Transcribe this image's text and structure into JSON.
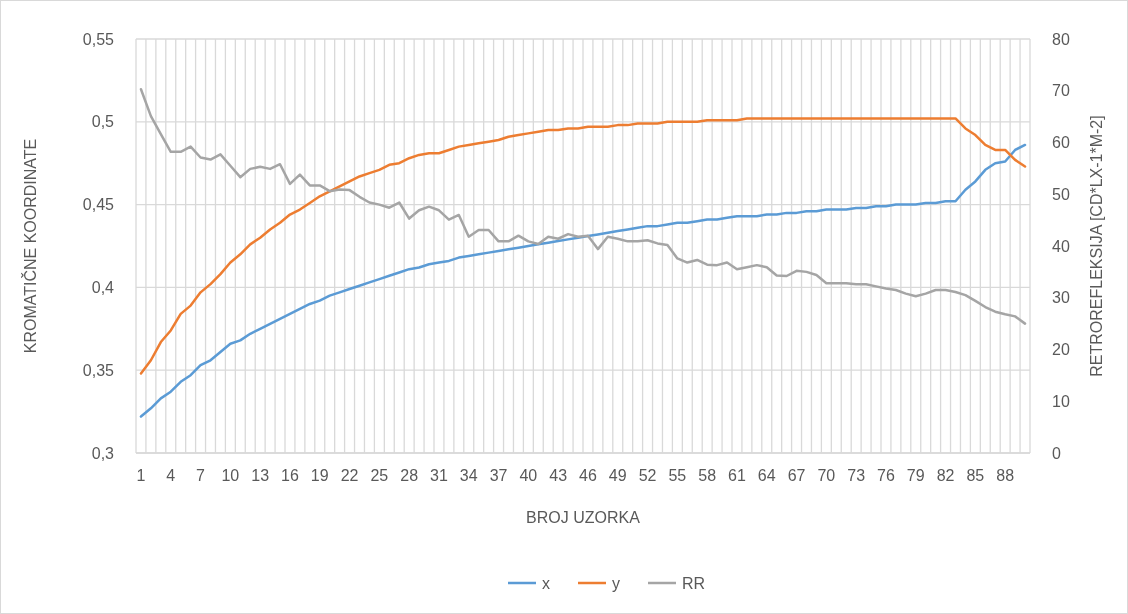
{
  "chart_data": {
    "type": "line",
    "xlabel": "BROJ UZORKA",
    "ylabel": "KROMATIČNE KOORDINATE",
    "y2label": "RETROREFLEKSIJA [CD*LX-1*M-2]",
    "categories": [
      "1",
      null,
      null,
      "4",
      null,
      null,
      "7",
      null,
      null,
      "10",
      null,
      null,
      "13",
      null,
      null,
      "16",
      null,
      null,
      "19",
      null,
      null,
      "22",
      null,
      null,
      "25",
      null,
      null,
      "28",
      null,
      null,
      "31",
      null,
      null,
      "34",
      null,
      null,
      "37",
      null,
      null,
      "40",
      null,
      null,
      "43",
      null,
      null,
      "46",
      null,
      null,
      "49",
      null,
      null,
      "52",
      null,
      null,
      "55",
      null,
      null,
      "58",
      null,
      null,
      "61",
      null,
      null,
      "64",
      null,
      null,
      "67",
      null,
      null,
      "70",
      null,
      null,
      "73",
      null,
      null,
      "76",
      null,
      null,
      "79",
      null,
      null,
      "82",
      null,
      null,
      "85",
      null,
      null,
      "88",
      null,
      null
    ],
    "ylim": [
      0.3,
      0.55
    ],
    "yticks": [
      {
        "value": 0.3,
        "label": "0,3"
      },
      {
        "value": 0.35,
        "label": "0,35"
      },
      {
        "value": 0.4,
        "label": "0,4"
      },
      {
        "value": 0.45,
        "label": "0,45"
      },
      {
        "value": 0.5,
        "label": "0,5"
      },
      {
        "value": 0.55,
        "label": "0,55"
      }
    ],
    "y2lim": [
      0,
      80
    ],
    "y2ticks": [
      0,
      10,
      20,
      30,
      40,
      50,
      60,
      70,
      80
    ],
    "grid": true,
    "legend": "bottom",
    "marker": "none",
    "line_style": "solid",
    "series": [
      {
        "name": "x",
        "color": "#5b9bd5",
        "values": [
          0.322,
          0.327,
          0.333,
          0.337,
          0.343,
          0.347,
          0.353,
          0.356,
          0.361,
          0.366,
          0.368,
          0.372,
          0.375,
          0.378,
          0.381,
          0.384,
          0.387,
          0.39,
          0.392,
          0.395,
          0.397,
          0.399,
          0.401,
          0.403,
          0.405,
          0.407,
          0.409,
          0.411,
          0.412,
          0.414,
          0.415,
          0.416,
          0.418,
          0.419,
          0.42,
          0.421,
          0.422,
          0.423,
          0.424,
          0.425,
          0.426,
          0.427,
          0.428,
          0.429,
          0.43,
          0.431,
          0.432,
          0.433,
          0.434,
          0.435,
          0.436,
          0.437,
          0.437,
          0.438,
          0.439,
          0.439,
          0.44,
          0.441,
          0.441,
          0.442,
          0.443,
          0.443,
          0.443,
          0.444,
          0.444,
          0.445,
          0.445,
          0.446,
          0.446,
          0.447,
          0.447,
          0.447,
          0.448,
          0.448,
          0.449,
          0.449,
          0.45,
          0.45,
          0.45,
          0.451,
          0.451,
          0.452,
          0.452,
          0.459,
          0.464,
          0.471,
          0.475,
          0.476,
          0.483,
          0.486
        ]
      },
      {
        "name": "y",
        "color": "#ed7d31",
        "values": [
          0.348,
          0.356,
          0.367,
          0.374,
          0.384,
          0.389,
          0.397,
          0.402,
          0.408,
          0.415,
          0.42,
          0.426,
          0.43,
          0.435,
          0.439,
          0.444,
          0.447,
          0.451,
          0.455,
          0.458,
          0.461,
          0.464,
          0.467,
          0.469,
          0.471,
          0.474,
          0.475,
          0.478,
          0.48,
          0.481,
          0.481,
          0.483,
          0.485,
          0.486,
          0.487,
          0.488,
          0.489,
          0.491,
          0.492,
          0.493,
          0.494,
          0.495,
          0.495,
          0.496,
          0.496,
          0.497,
          0.497,
          0.497,
          0.498,
          0.498,
          0.499,
          0.499,
          0.499,
          0.5,
          0.5,
          0.5,
          0.5,
          0.501,
          0.501,
          0.501,
          0.501,
          0.502,
          0.502,
          0.502,
          0.502,
          0.502,
          0.502,
          0.502,
          0.502,
          0.502,
          0.502,
          0.502,
          0.502,
          0.502,
          0.502,
          0.502,
          0.502,
          0.502,
          0.502,
          0.502,
          0.502,
          0.502,
          0.502,
          0.496,
          0.492,
          0.486,
          0.483,
          0.483,
          0.477,
          0.473
        ]
      },
      {
        "name": "RR",
        "color": "#a5a5a5",
        "axis": "y2",
        "values": [
          70.3,
          65.1,
          61.6,
          58.2,
          58.2,
          59.2,
          57.1,
          56.7,
          57.7,
          55.5,
          53.3,
          54.9,
          55.3,
          54.9,
          55.8,
          52.0,
          53.8,
          51.7,
          51.7,
          50.6,
          50.9,
          50.8,
          49.5,
          48.4,
          48.0,
          47.4,
          48.4,
          45.3,
          46.9,
          47.6,
          46.9,
          45.1,
          46.0,
          41.8,
          43.1,
          43.1,
          40.9,
          40.9,
          42.0,
          40.9,
          40.4,
          41.8,
          41.4,
          42.3,
          41.8,
          42.0,
          39.4,
          41.8,
          41.4,
          40.9,
          40.9,
          41.1,
          40.5,
          40.2,
          37.6,
          36.8,
          37.3,
          36.4,
          36.3,
          36.8,
          35.5,
          35.9,
          36.3,
          35.9,
          34.3,
          34.2,
          35.2,
          35.0,
          34.4,
          32.8,
          32.8,
          32.8,
          32.6,
          32.6,
          32.2,
          31.8,
          31.5,
          30.8,
          30.3,
          30.8,
          31.5,
          31.5,
          31.1,
          30.5,
          29.4,
          28.2,
          27.3,
          26.8,
          26.4,
          25.0
        ]
      }
    ]
  }
}
